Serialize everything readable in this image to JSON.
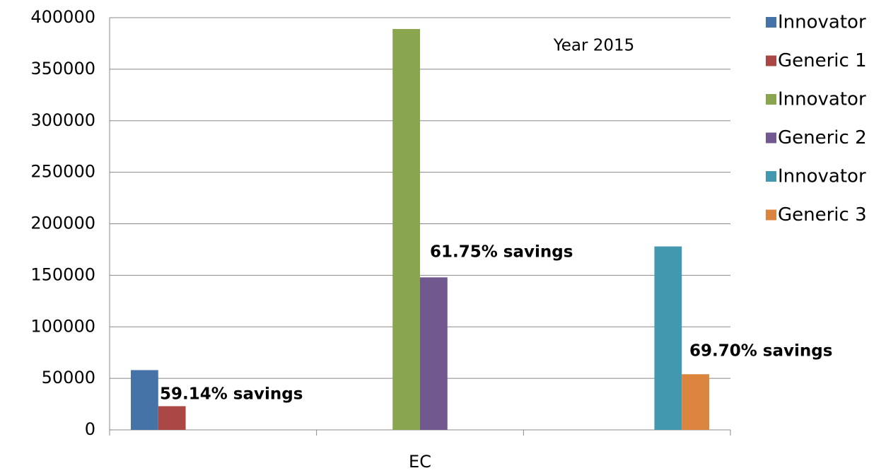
{
  "chart_data": {
    "type": "bar",
    "categories": [
      null,
      "EC",
      null
    ],
    "series": [
      {
        "name": "Innovator",
        "color": "#4572a7",
        "values": [
          58000,
          null,
          null
        ]
      },
      {
        "name": "Generic 1",
        "color": "#aa4643",
        "values": [
          23000,
          null,
          null
        ]
      },
      {
        "name": "Innovator",
        "color": "#89a54e",
        "values": [
          null,
          389000,
          null
        ]
      },
      {
        "name": "Generic 2",
        "color": "#71588f",
        "values": [
          null,
          148000,
          null
        ]
      },
      {
        "name": "Innovator",
        "color": "#4198af",
        "values": [
          null,
          null,
          178000
        ]
      },
      {
        "name": "Generic 3",
        "color": "#db843d",
        "values": [
          null,
          null,
          54000
        ]
      }
    ],
    "annotations": [
      "Year 2015",
      "59.14% savings",
      "61.75% savings",
      "69.70% savings"
    ],
    "ylim": [
      0,
      400000
    ],
    "yticks": [
      0,
      50000,
      100000,
      150000,
      200000,
      250000,
      300000,
      350000,
      400000
    ],
    "grid": true,
    "legend": "right"
  }
}
